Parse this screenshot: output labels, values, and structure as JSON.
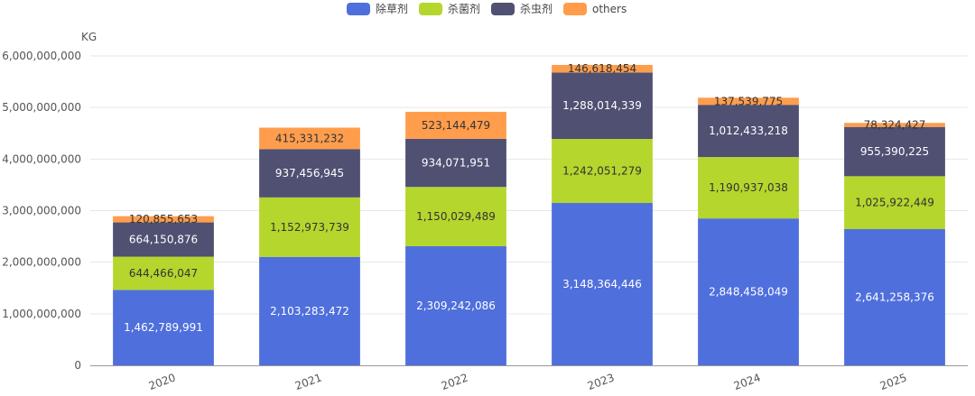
{
  "chart_data": {
    "type": "bar",
    "stacked": true,
    "title": "",
    "xlabel": "",
    "ylabel": "KG",
    "ylim": [
      0,
      6000000000
    ],
    "yticks": [
      0,
      1000000000,
      2000000000,
      3000000000,
      4000000000,
      5000000000,
      6000000000
    ],
    "ytick_labels": [
      "0",
      "1,000,000,000",
      "2,000,000,000",
      "3,000,000,000",
      "4,000,000,000",
      "5,000,000,000",
      "6,000,000,000"
    ],
    "grid": true,
    "legend_position": "top-center",
    "categories": [
      "2020",
      "2021",
      "2022",
      "2023",
      "2024",
      "2025"
    ],
    "series": [
      {
        "name": "除草剂",
        "color": "#4f6fdc",
        "label_color": "#ffffff",
        "values": [
          1462789991,
          2103283472,
          2309242086,
          3148364446,
          2848458049,
          2641258376
        ],
        "labels": [
          "1,462,789,991",
          "2,103,283,472",
          "2,309,242,086",
          "3,148,364,446",
          "2,848,458,049",
          "2,641,258,376"
        ]
      },
      {
        "name": "杀菌剂",
        "color": "#b5d62d",
        "label_color": "#333333",
        "values": [
          644466047,
          1152973739,
          1150029489,
          1242051279,
          1190937038,
          1025922449
        ],
        "labels": [
          "644,466,047",
          "1,152,973,739",
          "1,150,029,489",
          "1,242,051,279",
          "1,190,937,038",
          "1,025,922,449"
        ]
      },
      {
        "name": "杀虫剂",
        "color": "#4f5072",
        "label_color": "#ffffff",
        "values": [
          664150876,
          937456945,
          934071951,
          1288014339,
          1012433218,
          955390225
        ],
        "labels": [
          "664,150,876",
          "937,456,945",
          "934,071,951",
          "1,288,014,339",
          "1,012,433,218",
          "955,390,225"
        ]
      },
      {
        "name": "others",
        "color": "#ff9d4d",
        "label_color": "#333333",
        "values": [
          120855653,
          415331232,
          523144479,
          146618454,
          137539775,
          78324427
        ],
        "labels": [
          "120,855,653",
          "415,331,232",
          "523,144,479",
          "146,618,454",
          "137,539,775",
          "78,324,427"
        ]
      }
    ]
  }
}
